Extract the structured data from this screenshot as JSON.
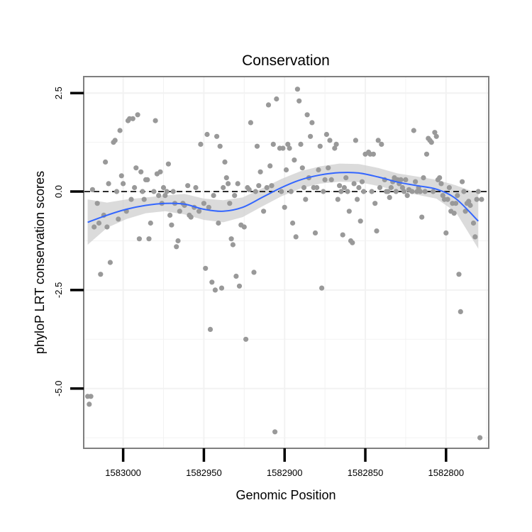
{
  "chart_data": {
    "type": "scatter",
    "title": "Conservation",
    "xlabel": "Genomic Position",
    "ylabel": "phyloP LRT conservation scores",
    "x_reversed": true,
    "xlim": [
      1583024,
      1582774
    ],
    "ylim": [
      -6.5,
      2.9
    ],
    "x_ticks": [
      1583000,
      1582950,
      1582900,
      1582850,
      1582800
    ],
    "x_tick_labels": [
      "1583000",
      "1582950",
      "1582900",
      "1582850",
      "1582800"
    ],
    "y_ticks": [
      2.5,
      0,
      -2.5,
      -5
    ],
    "y_tick_labels": [
      "2.5",
      "0.0",
      "-2.5",
      "-5.0"
    ],
    "reference_line": {
      "y": 0,
      "style": "dashed"
    },
    "point_color": "#999999",
    "smooth_color": "#3366ff",
    "ribbon_color": "#cfcfcf",
    "points": [
      [
        1583022,
        -5.2
      ],
      [
        1583021,
        -5.4
      ],
      [
        1583020,
        -5.2
      ],
      [
        1583019,
        0.05
      ],
      [
        1583018,
        -0.9
      ],
      [
        1583016,
        -0.3
      ],
      [
        1583015,
        -0.8
      ],
      [
        1583014,
        -2.1
      ],
      [
        1583012,
        -0.6
      ],
      [
        1583011,
        0.75
      ],
      [
        1583010,
        -0.9
      ],
      [
        1583009,
        0.2
      ],
      [
        1583008,
        -1.8
      ],
      [
        1583006,
        1.25
      ],
      [
        1583005,
        1.3
      ],
      [
        1583004,
        0.0
      ],
      [
        1583003,
        -0.7
      ],
      [
        1583002,
        1.55
      ],
      [
        1583001,
        0.4
      ],
      [
        1583000,
        0.2
      ],
      [
        1582998,
        -0.5
      ],
      [
        1582997,
        1.8
      ],
      [
        1582996,
        1.85
      ],
      [
        1582995,
        -0.2
      ],
      [
        1582994,
        1.85
      ],
      [
        1582993,
        0.1
      ],
      [
        1582992,
        0.6
      ],
      [
        1582991,
        1.95
      ],
      [
        1582990,
        -1.2
      ],
      [
        1582989,
        0.5
      ],
      [
        1582988,
        0.0
      ],
      [
        1582987,
        -0.2
      ],
      [
        1582986,
        0.3
      ],
      [
        1582985,
        0.3
      ],
      [
        1582984,
        -1.2
      ],
      [
        1582983,
        -0.8
      ],
      [
        1582981,
        0.0
      ],
      [
        1582980,
        1.8
      ],
      [
        1582979,
        0.45
      ],
      [
        1582978,
        -0.1
      ],
      [
        1582977,
        0.5
      ],
      [
        1582976,
        -0.3
      ],
      [
        1582975,
        0.1
      ],
      [
        1582974,
        -0.1
      ],
      [
        1582973,
        0.0
      ],
      [
        1582972,
        0.7
      ],
      [
        1582971,
        -0.6
      ],
      [
        1582970,
        -0.85
      ],
      [
        1582969,
        0.0
      ],
      [
        1582968,
        -0.3
      ],
      [
        1582967,
        -1.4
      ],
      [
        1582966,
        -1.25
      ],
      [
        1582965,
        -0.5
      ],
      [
        1582963,
        -0.3
      ],
      [
        1582962,
        -0.35
      ],
      [
        1582960,
        0.15
      ],
      [
        1582959,
        -0.6
      ],
      [
        1582958,
        -0.65
      ],
      [
        1582956,
        -0.4
      ],
      [
        1582955,
        0.1
      ],
      [
        1582953,
        -0.5
      ],
      [
        1582952,
        1.2
      ],
      [
        1582950,
        -0.3
      ],
      [
        1582949,
        -1.95
      ],
      [
        1582948,
        1.45
      ],
      [
        1582947,
        -0.4
      ],
      [
        1582946,
        -3.5
      ],
      [
        1582945,
        -2.3
      ],
      [
        1582944,
        -0.1
      ],
      [
        1582943,
        -2.5
      ],
      [
        1582942,
        1.4
      ],
      [
        1582941,
        -0.8
      ],
      [
        1582940,
        1.15
      ],
      [
        1582939,
        -2.45
      ],
      [
        1582938,
        0.1
      ],
      [
        1582937,
        0.75
      ],
      [
        1582936,
        0.35
      ],
      [
        1582935,
        0.2
      ],
      [
        1582934,
        -0.3
      ],
      [
        1582933,
        -1.2
      ],
      [
        1582932,
        -1.35
      ],
      [
        1582931,
        -0.1
      ],
      [
        1582930,
        -2.15
      ],
      [
        1582929,
        0.2
      ],
      [
        1582928,
        -2.4
      ],
      [
        1582927,
        -0.85
      ],
      [
        1582925,
        -0.9
      ],
      [
        1582924,
        -3.75
      ],
      [
        1582923,
        0.1
      ],
      [
        1582922,
        0.05
      ],
      [
        1582921,
        1.75
      ],
      [
        1582919,
        -2.05
      ],
      [
        1582918,
        0.0
      ],
      [
        1582917,
        1.15
      ],
      [
        1582916,
        0.15
      ],
      [
        1582915,
        0.5
      ],
      [
        1582913,
        -0.5
      ],
      [
        1582911,
        0.1
      ],
      [
        1582910,
        2.2
      ],
      [
        1582909,
        0.65
      ],
      [
        1582908,
        0.15
      ],
      [
        1582907,
        1.2
      ],
      [
        1582906,
        -6.1
      ],
      [
        1582905,
        2.35
      ],
      [
        1582903,
        1.1
      ],
      [
        1582902,
        0.0
      ],
      [
        1582901,
        1.1
      ],
      [
        1582900,
        -0.4
      ],
      [
        1582899,
        0.55
      ],
      [
        1582898,
        1.2
      ],
      [
        1582897,
        1.1
      ],
      [
        1582896,
        0.0
      ],
      [
        1582895,
        -0.8
      ],
      [
        1582894,
        0.8
      ],
      [
        1582893,
        -1.15
      ],
      [
        1582892,
        2.6
      ],
      [
        1582891,
        2.3
      ],
      [
        1582890,
        1.2
      ],
      [
        1582889,
        0.6
      ],
      [
        1582888,
        0.1
      ],
      [
        1582887,
        -0.2
      ],
      [
        1582886,
        1.95
      ],
      [
        1582885,
        0.35
      ],
      [
        1582884,
        1.4
      ],
      [
        1582883,
        1.75
      ],
      [
        1582882,
        0.1
      ],
      [
        1582881,
        -1.05
      ],
      [
        1582880,
        0.1
      ],
      [
        1582879,
        0.55
      ],
      [
        1582878,
        1.15
      ],
      [
        1582877,
        -2.45
      ],
      [
        1582876,
        0.0
      ],
      [
        1582875,
        0.3
      ],
      [
        1582874,
        1.45
      ],
      [
        1582873,
        0.6
      ],
      [
        1582872,
        1.3
      ],
      [
        1582871,
        0.3
      ],
      [
        1582869,
        1.1
      ],
      [
        1582868,
        1.2
      ],
      [
        1582867,
        -0.2
      ],
      [
        1582866,
        0.15
      ],
      [
        1582865,
        0.0
      ],
      [
        1582864,
        -1.1
      ],
      [
        1582863,
        0.1
      ],
      [
        1582862,
        0.35
      ],
      [
        1582861,
        0.0
      ],
      [
        1582860,
        -0.5
      ],
      [
        1582859,
        -1.25
      ],
      [
        1582858,
        -1.3
      ],
      [
        1582857,
        0.2
      ],
      [
        1582856,
        1.3
      ],
      [
        1582855,
        -0.2
      ],
      [
        1582854,
        0.1
      ],
      [
        1582853,
        -0.75
      ],
      [
        1582852,
        0.25
      ],
      [
        1582851,
        0.0
      ],
      [
        1582850,
        0.95
      ],
      [
        1582848,
        1.0
      ],
      [
        1582847,
        0.95
      ],
      [
        1582846,
        0.0
      ],
      [
        1582845,
        0.95
      ],
      [
        1582844,
        -0.3
      ],
      [
        1582843,
        -1.0
      ],
      [
        1582842,
        1.3
      ],
      [
        1582841,
        0.1
      ],
      [
        1582840,
        1.2
      ],
      [
        1582838,
        0.3
      ],
      [
        1582837,
        0.0
      ],
      [
        1582836,
        0.0
      ],
      [
        1582835,
        -0.15
      ],
      [
        1582834,
        0.1
      ],
      [
        1582833,
        0.25
      ],
      [
        1582832,
        0.35
      ],
      [
        1582831,
        0.0
      ],
      [
        1582830,
        0.3
      ],
      [
        1582829,
        0.2
      ],
      [
        1582828,
        0.3
      ],
      [
        1582827,
        0.1
      ],
      [
        1582826,
        0.0
      ],
      [
        1582825,
        0.3
      ],
      [
        1582824,
        -0.1
      ],
      [
        1582823,
        0.05
      ],
      [
        1582821,
        0.0
      ],
      [
        1582820,
        1.55
      ],
      [
        1582819,
        0.25
      ],
      [
        1582818,
        0.0
      ],
      [
        1582817,
        0.1
      ],
      [
        1582816,
        0.0
      ],
      [
        1582815,
        -0.65
      ],
      [
        1582814,
        0.35
      ],
      [
        1582813,
        0.0
      ],
      [
        1582812,
        0.95
      ],
      [
        1582811,
        1.35
      ],
      [
        1582810,
        1.3
      ],
      [
        1582809,
        1.25
      ],
      [
        1582808,
        0.0
      ],
      [
        1582807,
        1.5
      ],
      [
        1582806,
        1.4
      ],
      [
        1582805,
        0.3
      ],
      [
        1582804,
        0.35
      ],
      [
        1582803,
        0.2
      ],
      [
        1582802,
        -0.1
      ],
      [
        1582801,
        -0.2
      ],
      [
        1582800,
        -1.05
      ],
      [
        1582799,
        -0.2
      ],
      [
        1582798,
        0.1
      ],
      [
        1582797,
        -0.5
      ],
      [
        1582796,
        -0.3
      ],
      [
        1582795,
        -0.55
      ],
      [
        1582794,
        -0.3
      ],
      [
        1582793,
        -0.1
      ],
      [
        1582792,
        -2.1
      ],
      [
        1582791,
        -3.05
      ],
      [
        1582790,
        0.25
      ],
      [
        1582789,
        0.0
      ],
      [
        1582788,
        -0.5
      ],
      [
        1582787,
        -0.3
      ],
      [
        1582786,
        -0.25
      ],
      [
        1582785,
        -0.35
      ],
      [
        1582783,
        -0.8
      ],
      [
        1582782,
        -1.15
      ],
      [
        1582781,
        -0.2
      ],
      [
        1582780,
        0.0
      ],
      [
        1582779,
        -6.25
      ],
      [
        1582778,
        -0.2
      ]
    ],
    "smooth": {
      "x": [
        1583022,
        1583010,
        1582998,
        1582986,
        1582974,
        1582962,
        1582950,
        1582938,
        1582926,
        1582914,
        1582902,
        1582890,
        1582878,
        1582866,
        1582854,
        1582842,
        1582830,
        1582818,
        1582806,
        1582794,
        1582780
      ],
      "y": [
        -0.78,
        -0.6,
        -0.45,
        -0.35,
        -0.3,
        -0.32,
        -0.45,
        -0.5,
        -0.4,
        -0.15,
        0.1,
        0.3,
        0.42,
        0.48,
        0.47,
        0.37,
        0.24,
        0.15,
        0.06,
        -0.18,
        -0.75
      ],
      "lower": [
        -1.35,
        -0.92,
        -0.7,
        -0.55,
        -0.5,
        -0.58,
        -0.72,
        -0.78,
        -0.65,
        -0.38,
        -0.12,
        0.08,
        0.2,
        0.25,
        0.24,
        0.14,
        0.02,
        -0.08,
        -0.18,
        -0.52,
        -1.45
      ],
      "upper": [
        -0.2,
        -0.28,
        -0.2,
        -0.15,
        -0.1,
        -0.06,
        -0.18,
        -0.22,
        -0.15,
        0.08,
        0.32,
        0.52,
        0.64,
        0.71,
        0.7,
        0.6,
        0.46,
        0.38,
        0.3,
        0.16,
        -0.05
      ]
    }
  }
}
